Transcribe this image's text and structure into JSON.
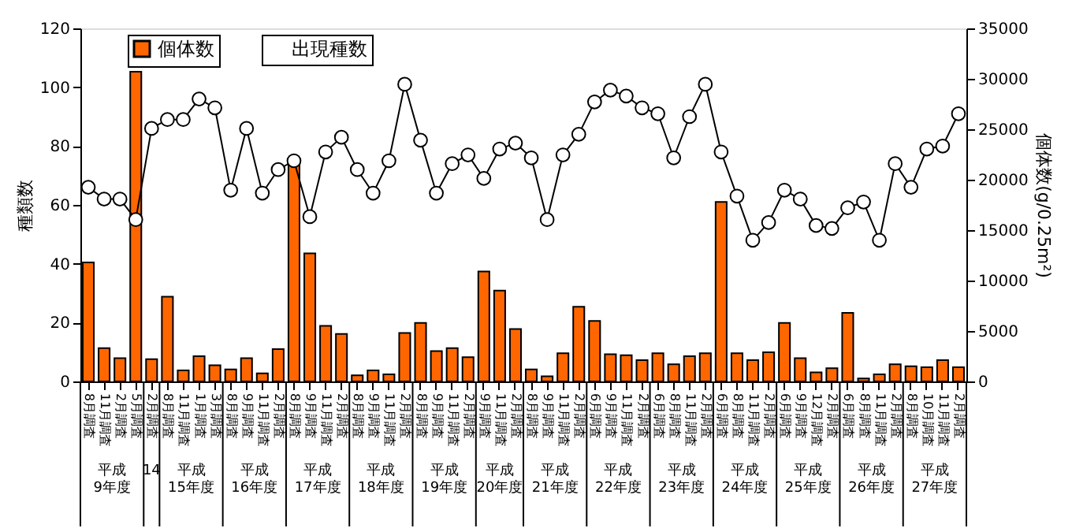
{
  "chart_data": {
    "type": "bar",
    "ylabel": "種類数",
    "y2label": "個体数(g/0.25m²)",
    "categories": [
      "8月調査",
      "11月調査",
      "2月調査",
      "5月調査",
      "2月調査",
      "8月調査",
      "11月調査",
      "1月調査",
      "3月調査",
      "8月調査",
      "9月調査",
      "11月調査",
      "2月調査",
      "8月調査",
      "9月調査",
      "11月調査",
      "2月調査",
      "8月調査",
      "9月調査",
      "11月調査",
      "2月調査",
      "8月調査",
      "9月調査",
      "11月調査",
      "2月調査",
      "9月調査",
      "11月調査",
      "2月調査",
      "8月調査",
      "9月調査",
      "11月調査",
      "2月調査",
      "6月調査",
      "9月調査",
      "11月調査",
      "2月調査",
      "6月調査",
      "8月調査",
      "11月調査",
      "2月調査",
      "6月調査",
      "8月調査",
      "11月調査",
      "2月調査",
      "6月調査",
      "9月調査",
      "12月調査",
      "2月調査",
      "6月調査",
      "8月調査",
      "11月調査",
      "2月調査",
      "8月調査",
      "10月調査",
      "11月調査",
      "2月調査"
    ],
    "series": [
      {
        "name": "個体数",
        "axis": "y2",
        "color": "#ff6600",
        "values": [
          11800,
          3300,
          2300,
          30700,
          2200,
          8400,
          1100,
          2500,
          1600,
          1200,
          2300,
          800,
          3200,
          21500,
          12700,
          5500,
          4700,
          600,
          1100,
          700,
          4800,
          5800,
          3000,
          3300,
          2400,
          10900,
          9000,
          5200,
          1200,
          500,
          2800,
          7400,
          6000,
          2700,
          2600,
          2100,
          2800,
          1700,
          2500,
          2800,
          17800,
          2800,
          2100,
          2900,
          5800,
          2300,
          900,
          1300,
          6800,
          300,
          700,
          1700,
          1500,
          1400,
          2100,
          1400
        ]
      },
      {
        "name": "出現種数",
        "type": "line",
        "axis": "y",
        "color": "#000000",
        "marker": "circle",
        "line_style": "solid",
        "values": [
          66,
          62,
          62,
          55,
          86,
          89,
          89,
          96,
          93,
          65,
          86,
          64,
          72,
          75,
          56,
          78,
          83,
          72,
          64,
          75,
          101,
          82,
          64,
          74,
          77,
          69,
          79,
          81,
          76,
          55,
          77,
          84,
          95,
          99,
          97,
          93,
          91,
          76,
          90,
          101,
          78,
          63,
          48,
          54,
          65,
          62,
          53,
          52,
          59,
          61,
          48,
          74,
          66,
          79,
          80,
          91
        ]
      }
    ],
    "ylim": [
      0,
      120
    ],
    "yticks": [
      0,
      20,
      40,
      60,
      80,
      100,
      120
    ],
    "y2lim": [
      0,
      35000
    ],
    "y2ticks": [
      0,
      5000,
      10000,
      15000,
      20000,
      25000,
      30000,
      35000
    ],
    "annotations": [
      "平成\n9年度",
      "14",
      "平成\n15年度",
      "平成\n16年度",
      "平成\n17年度",
      "平成\n18年度",
      "平成\n19年度",
      "平成\n20年度",
      "平成\n21年度",
      "平成\n22年度",
      "平成\n23年度",
      "平成\n24年度",
      "平成\n25年度",
      "平成\n26年度",
      "平成\n27年度"
    ],
    "legend": "top left",
    "grid": false
  }
}
